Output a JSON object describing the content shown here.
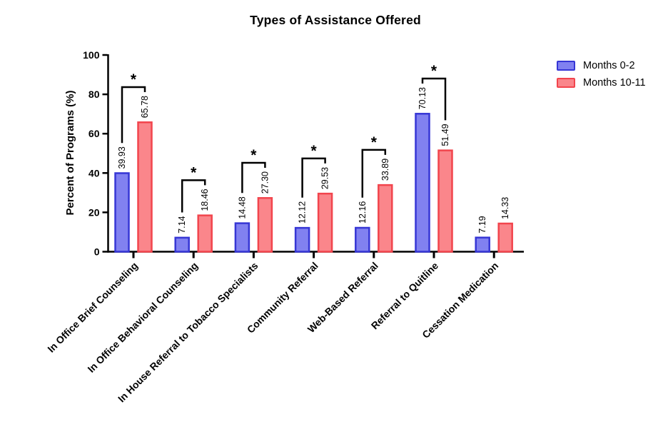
{
  "title": "Types of Assistance Offered",
  "legend": {
    "items": [
      {
        "label": "Months 0-2",
        "fill": "#8181f0",
        "border": "#3636d5"
      },
      {
        "label": "Months 10-11",
        "fill": "#fa868b",
        "border": "#f2454d"
      }
    ]
  },
  "chart_data": {
    "type": "bar",
    "title": "Types of Assistance Offered",
    "xlabel": "",
    "ylabel": "Percent of Programs (%)",
    "ylim": [
      0,
      100
    ],
    "yticks": [
      0,
      20,
      40,
      60,
      80,
      100
    ],
    "grid": false,
    "legend_position": "top-right",
    "categories": [
      "In Office Brief Counseling",
      "In Office Behavioral Counseling",
      "In House Referral to Tobacco Specialists",
      "Community Referral",
      "Web-Based Referral",
      "Referral to Quitline",
      "Cessation Medication"
    ],
    "series": [
      {
        "name": "Months 0-2",
        "values": [
          39.93,
          7.14,
          14.48,
          12.12,
          12.16,
          70.13,
          7.19
        ]
      },
      {
        "name": "Months 10-11",
        "values": [
          65.78,
          18.46,
          27.3,
          29.53,
          33.89,
          51.49,
          14.33
        ]
      }
    ],
    "bar_value_labels": [
      [
        "39.93",
        "7.14",
        "14.48",
        "12.12",
        "12.16",
        "70.13",
        "7.19"
      ],
      [
        "65.78",
        "18.46",
        "27.30",
        "29.53",
        "33.89",
        "51.49",
        "14.33"
      ]
    ],
    "significance_brackets": [
      true,
      true,
      true,
      true,
      true,
      true,
      false
    ],
    "significance_marker": "*"
  },
  "colors": {
    "axis": "#000000",
    "text": "#000000",
    "background": "#ffffff",
    "series1_fill": "#8181f0",
    "series1_border": "#3636d5",
    "series2_fill": "#fa868b",
    "series2_border": "#f2454d"
  }
}
